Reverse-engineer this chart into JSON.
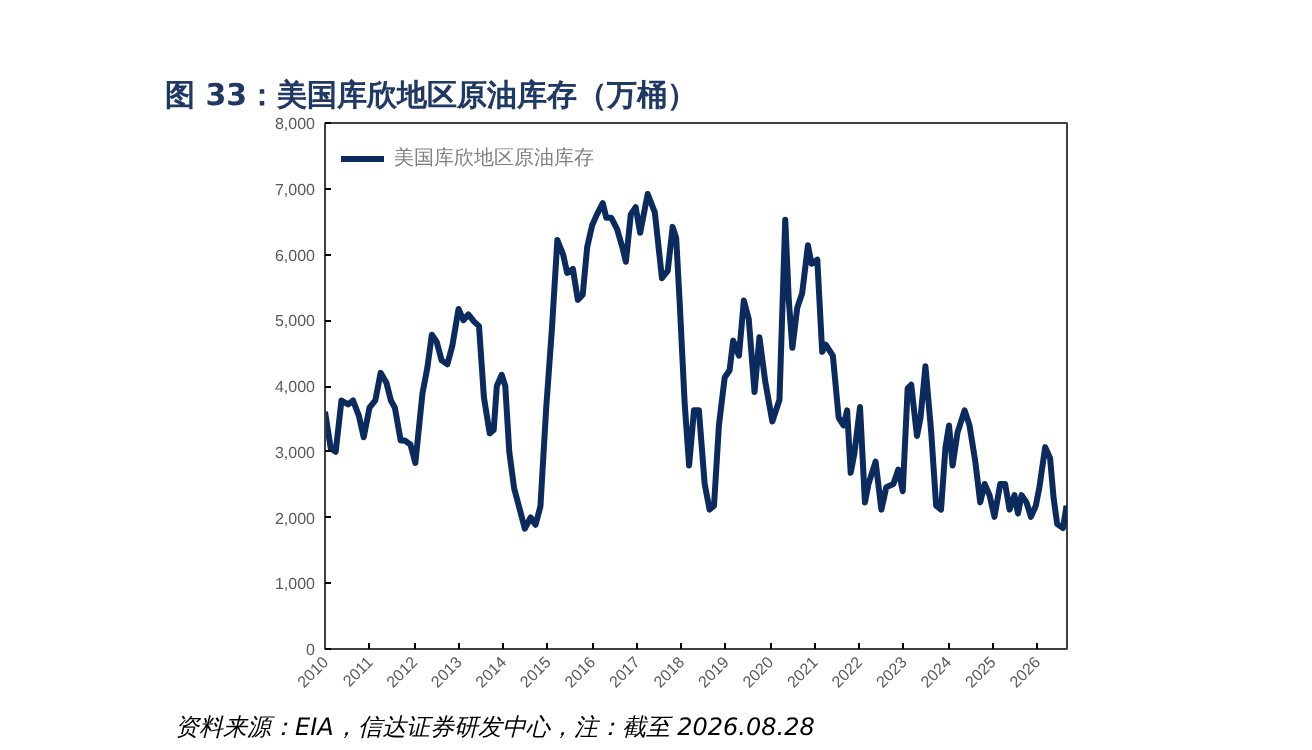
{
  "chart_data": {
    "type": "line",
    "title": "图 33：美国库欣地区原油库存（万桶）",
    "annotations": [
      "资料来源：EIA，信达证券研发中心，注：截至 2026.08.28"
    ],
    "xlim": [
      2010,
      2026.67
    ],
    "xticks": [
      2010,
      2011,
      2012,
      2013,
      2014,
      2015,
      2016,
      2017,
      2018,
      2019,
      2020,
      2021,
      2022,
      2023,
      2024,
      2025,
      2026
    ],
    "ylim": [
      0,
      8000
    ],
    "yticks": [
      0,
      {
        "value": 1000,
        "label": "1,000"
      },
      {
        "value": 2000,
        "label": "2,000"
      },
      {
        "value": 3000,
        "label": "3,000"
      },
      {
        "value": 4000,
        "label": "4,000"
      },
      {
        "value": 5000,
        "label": "5,000"
      },
      {
        "value": 6000,
        "label": "6,000"
      },
      {
        "value": 7000,
        "label": "7,000"
      },
      {
        "value": 8000,
        "label": "8,000"
      }
    ],
    "grid": false,
    "legend": "top left",
    "marker": "none",
    "line_style": "solid",
    "series": [
      {
        "name": "美国库欣地区原油库存",
        "color": "#0b2a5e",
        "x": [
          2010.0,
          2010.13,
          2010.24,
          2010.37,
          2010.52,
          2010.63,
          2010.76,
          2010.87,
          2011.0,
          2011.13,
          2011.25,
          2011.38,
          2011.48,
          2011.57,
          2011.7,
          2011.79,
          2011.92,
          2012.03,
          2012.19,
          2012.3,
          2012.4,
          2012.51,
          2012.62,
          2012.75,
          2012.86,
          2013.0,
          2013.11,
          2013.22,
          2013.35,
          2013.46,
          2013.57,
          2013.7,
          2013.79,
          2013.86,
          2013.97,
          2014.05,
          2014.14,
          2014.25,
          2014.38,
          2014.49,
          2014.62,
          2014.73,
          2014.84,
          2014.97,
          2015.1,
          2015.22,
          2015.35,
          2015.44,
          2015.57,
          2015.68,
          2015.79,
          2015.89,
          2016.0,
          2016.11,
          2016.24,
          2016.32,
          2016.43,
          2016.56,
          2016.68,
          2016.76,
          2016.87,
          2016.98,
          2017.08,
          2017.25,
          2017.41,
          2017.57,
          2017.7,
          2017.81,
          2017.89,
          2017.97,
          2018.08,
          2018.18,
          2018.29,
          2018.4,
          2018.53,
          2018.64,
          2018.74,
          2018.85,
          2018.98,
          2019.09,
          2019.17,
          2019.3,
          2019.41,
          2019.52,
          2019.65,
          2019.76,
          2019.89,
          2020.05,
          2020.21,
          2020.34,
          2020.42,
          2020.5,
          2020.61,
          2020.72,
          2020.85,
          2020.93,
          2021.06,
          2021.17,
          2021.25,
          2021.41,
          2021.54,
          2021.65,
          2021.73,
          2021.81,
          2021.89,
          2022.02,
          2022.13,
          2022.21,
          2022.37,
          2022.5,
          2022.61,
          2022.77,
          2022.88,
          2022.98,
          2023.09,
          2023.17,
          2023.3,
          2023.38,
          2023.49,
          2023.62,
          2023.73,
          2023.84,
          2023.94,
          2024.02,
          2024.1,
          2024.21,
          2024.37,
          2024.48,
          2024.61,
          2024.72,
          2024.82,
          2024.93,
          2025.04,
          2025.17,
          2025.28,
          2025.38,
          2025.49,
          2025.57,
          2025.65,
          2025.76,
          2025.86,
          2025.97,
          2026.05,
          2026.18,
          2026.29,
          2026.37,
          2026.45,
          2026.58,
          2026.66
        ],
        "values": [
          3610,
          3050,
          3000,
          3780,
          3720,
          3780,
          3550,
          3220,
          3670,
          3780,
          4200,
          4050,
          3780,
          3670,
          3170,
          3170,
          3110,
          2830,
          3890,
          4280,
          4780,
          4670,
          4390,
          4330,
          4610,
          5170,
          5000,
          5090,
          4980,
          4910,
          3830,
          3280,
          3330,
          4000,
          4170,
          4000,
          3000,
          2440,
          2110,
          1830,
          2000,
          1890,
          2170,
          3670,
          4890,
          6220,
          6000,
          5720,
          5780,
          5310,
          5390,
          6110,
          6440,
          6610,
          6780,
          6560,
          6560,
          6390,
          6110,
          5890,
          6610,
          6720,
          6330,
          6920,
          6640,
          5640,
          5750,
          6420,
          6250,
          5250,
          3740,
          2790,
          3630,
          3630,
          2510,
          2120,
          2180,
          3400,
          4130,
          4240,
          4690,
          4460,
          5300,
          5020,
          3910,
          4740,
          4070,
          3460,
          3790,
          6530,
          5300,
          4580,
          5190,
          5410,
          6140,
          5860,
          5920,
          4520,
          4630,
          4460,
          3520,
          3400,
          3630,
          2680,
          2960,
          3680,
          2230,
          2510,
          2850,
          2120,
          2460,
          2510,
          2730,
          2400,
          3960,
          4020,
          3240,
          3520,
          4300,
          3290,
          2180,
          2120,
          3070,
          3400,
          2790,
          3290,
          3630,
          3400,
          2850,
          2230,
          2510,
          2340,
          2010,
          2510,
          2510,
          2120,
          2340,
          2060,
          2340,
          2230,
          2010,
          2180,
          2460,
          3070,
          2900,
          2290,
          1900,
          1840,
          2180
        ]
      }
    ]
  }
}
